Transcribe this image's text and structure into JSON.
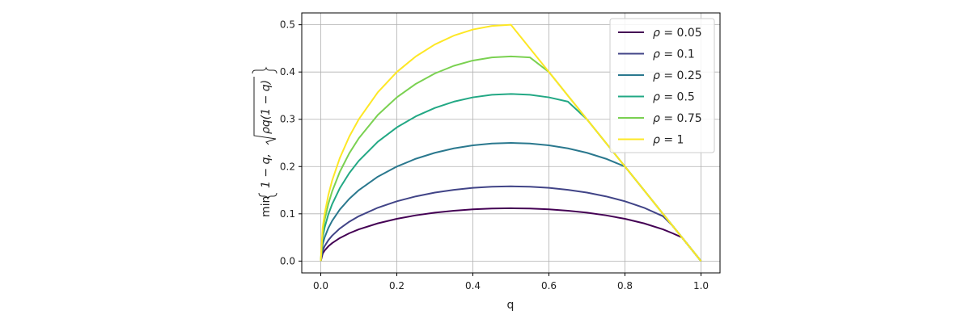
{
  "chart_data": {
    "type": "line",
    "title": "",
    "xlabel": "q",
    "ylabel": "min{1 − q,  √ρq(1 − q)}",
    "ylabel_parts": {
      "prefix": "min",
      "part1": "1 − q,",
      "part2": "ρq(1 − q)"
    },
    "xlim": [
      -0.05,
      1.05
    ],
    "ylim": [
      -0.025,
      0.525
    ],
    "x_ticks": [
      0.0,
      0.2,
      0.4,
      0.6,
      0.8,
      1.0
    ],
    "x_tick_labels": [
      "0.0",
      "0.2",
      "0.4",
      "0.6",
      "0.8",
      "1.0"
    ],
    "y_ticks": [
      0.0,
      0.1,
      0.2,
      0.3,
      0.4,
      0.5
    ],
    "y_tick_labels": [
      "0.0",
      "0.1",
      "0.2",
      "0.3",
      "0.4",
      "0.5"
    ],
    "grid": true,
    "legend_position": "top-right",
    "x": [
      0,
      0.005,
      0.01,
      0.02,
      0.03,
      0.05,
      0.075,
      0.1,
      0.15,
      0.2,
      0.25,
      0.3,
      0.35,
      0.4,
      0.45,
      0.5,
      0.55,
      0.6,
      0.65,
      0.7,
      0.75,
      0.8,
      0.85,
      0.9,
      0.925,
      0.95,
      0.975,
      1.0
    ],
    "series": [
      {
        "rho": 0.05,
        "label_value": "0.05",
        "color": "#440154",
        "values": [
          0,
          0.0158,
          0.0222,
          0.0313,
          0.0381,
          0.0487,
          0.0589,
          0.0671,
          0.0798,
          0.0894,
          0.0968,
          0.1025,
          0.1066,
          0.1095,
          0.1112,
          0.1118,
          0.1112,
          0.1095,
          0.1066,
          0.1025,
          0.0968,
          0.0894,
          0.0798,
          0.0671,
          0.0589,
          0.05,
          0.025,
          0
        ]
      },
      {
        "rho": 0.1,
        "label_value": "0.1",
        "color": "#414487",
        "values": [
          0,
          0.0223,
          0.0315,
          0.0443,
          0.0539,
          0.0689,
          0.0833,
          0.0949,
          0.1129,
          0.1265,
          0.1369,
          0.1449,
          0.1508,
          0.1549,
          0.1573,
          0.1581,
          0.1573,
          0.1549,
          0.1508,
          0.1449,
          0.1369,
          0.1265,
          0.1129,
          0.0949,
          0.075,
          0.05,
          0.025,
          0
        ]
      },
      {
        "rho": 0.25,
        "label_value": "0.25",
        "color": "#2a788e",
        "values": [
          0,
          0.0353,
          0.0497,
          0.07,
          0.0853,
          0.109,
          0.1317,
          0.15,
          0.1785,
          0.2,
          0.2165,
          0.2291,
          0.2385,
          0.2449,
          0.2487,
          0.25,
          0.2487,
          0.2449,
          0.2385,
          0.2291,
          0.2165,
          0.2,
          0.15,
          0.1,
          0.075,
          0.05,
          0.025,
          0
        ]
      },
      {
        "rho": 0.5,
        "label_value": "0.5",
        "color": "#22a884",
        "values": [
          0,
          0.0499,
          0.0704,
          0.099,
          0.1206,
          0.1541,
          0.1862,
          0.2121,
          0.2525,
          0.2828,
          0.3062,
          0.324,
          0.3373,
          0.3464,
          0.3518,
          0.3536,
          0.3518,
          0.3464,
          0.3373,
          0.3,
          0.25,
          0.2,
          0.15,
          0.1,
          0.075,
          0.05,
          0.025,
          0
        ]
      },
      {
        "rho": 0.75,
        "label_value": "0.75",
        "color": "#7ad151",
        "values": [
          0,
          0.0611,
          0.0862,
          0.1212,
          0.1477,
          0.1887,
          0.2281,
          0.2598,
          0.3092,
          0.3464,
          0.375,
          0.3969,
          0.4131,
          0.4243,
          0.4309,
          0.433,
          0.4309,
          0.4,
          0.35,
          0.3,
          0.25,
          0.2,
          0.15,
          0.1,
          0.075,
          0.05,
          0.025,
          0
        ]
      },
      {
        "rho": 1,
        "label_value": "1",
        "color": "#fde725",
        "values": [
          0,
          0.0705,
          0.0995,
          0.14,
          0.1706,
          0.2179,
          0.2634,
          0.3,
          0.3571,
          0.4,
          0.433,
          0.4583,
          0.477,
          0.4899,
          0.4975,
          0.5,
          0.45,
          0.4,
          0.35,
          0.3,
          0.25,
          0.2,
          0.15,
          0.1,
          0.075,
          0.05,
          0.025,
          0
        ]
      }
    ]
  }
}
